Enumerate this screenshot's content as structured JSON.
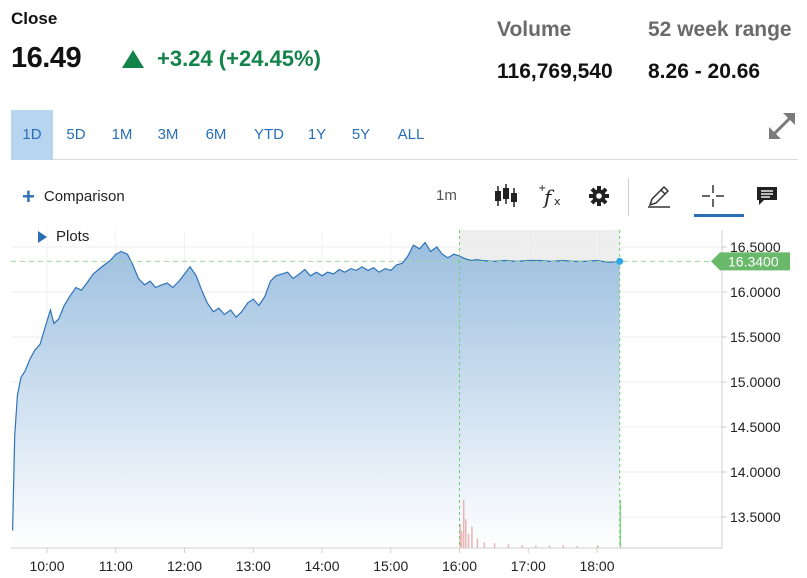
{
  "quote": {
    "close_label": "Close",
    "price": "16.49",
    "change": "+3.24 (+24.45%)",
    "change_direction": "up",
    "volume_label": "Volume",
    "volume_value": "116,769,540",
    "range_label": "52 week range",
    "range_value": "8.26 - 20.66",
    "up_color": "#13834a"
  },
  "range_tabs": [
    {
      "label": "1D",
      "active": true
    },
    {
      "label": "5D",
      "active": false
    },
    {
      "label": "1M",
      "active": false
    },
    {
      "label": "3M",
      "active": false
    },
    {
      "label": "6M",
      "active": false
    },
    {
      "label": "YTD",
      "active": false
    },
    {
      "label": "1Y",
      "active": false
    },
    {
      "label": "5Y",
      "active": false
    },
    {
      "label": "ALL",
      "active": false
    }
  ],
  "toolbar": {
    "comparison_label": "Comparison",
    "interval_label": "1m",
    "icons": [
      "candlestick-icon",
      "function-icon",
      "gear-icon",
      "pencil-icon",
      "crosshair-icon",
      "comment-icon"
    ],
    "accent_color": "#2a6fb5"
  },
  "plots_label": "Plots",
  "chart_data": {
    "type": "area",
    "x_tick_labels": [
      "10:00",
      "11:00",
      "12:00",
      "13:00",
      "14:00",
      "15:00",
      "16:00",
      "17:00",
      "18:00"
    ],
    "x_tick_hours": [
      10,
      11,
      12,
      13,
      14,
      15,
      16,
      17,
      18
    ],
    "y_tick_labels": [
      "16.5000",
      "16.0000",
      "15.5000",
      "15.0000",
      "14.5000",
      "14.0000",
      "13.5000"
    ],
    "y_tick_values": [
      16.5,
      16.0,
      15.5,
      15.0,
      14.5,
      14.0,
      13.5
    ],
    "ylim": [
      13.2,
      16.6
    ],
    "xlim": [
      9.5,
      19.0
    ],
    "last_price_label": "16.3400",
    "last_price": 16.34,
    "after_hours_start": 16.0,
    "series": [
      {
        "points": [
          [
            9.5,
            13.35
          ],
          [
            9.53,
            14.4
          ],
          [
            9.57,
            14.85
          ],
          [
            9.62,
            15.05
          ],
          [
            9.68,
            15.12
          ],
          [
            9.75,
            15.25
          ],
          [
            9.82,
            15.35
          ],
          [
            9.9,
            15.42
          ],
          [
            9.97,
            15.6
          ],
          [
            10.05,
            15.8
          ],
          [
            10.1,
            15.65
          ],
          [
            10.17,
            15.7
          ],
          [
            10.25,
            15.85
          ],
          [
            10.33,
            15.95
          ],
          [
            10.42,
            16.05
          ],
          [
            10.5,
            16.02
          ],
          [
            10.58,
            16.1
          ],
          [
            10.67,
            16.2
          ],
          [
            10.75,
            16.25
          ],
          [
            10.83,
            16.3
          ],
          [
            10.92,
            16.35
          ],
          [
            11.0,
            16.42
          ],
          [
            11.08,
            16.45
          ],
          [
            11.17,
            16.42
          ],
          [
            11.25,
            16.3
          ],
          [
            11.33,
            16.15
          ],
          [
            11.42,
            16.08
          ],
          [
            11.5,
            16.12
          ],
          [
            11.58,
            16.05
          ],
          [
            11.67,
            16.08
          ],
          [
            11.75,
            16.1
          ],
          [
            11.83,
            16.05
          ],
          [
            11.92,
            16.12
          ],
          [
            12.0,
            16.2
          ],
          [
            12.08,
            16.28
          ],
          [
            12.17,
            16.18
          ],
          [
            12.25,
            16.02
          ],
          [
            12.33,
            15.88
          ],
          [
            12.42,
            15.78
          ],
          [
            12.5,
            15.82
          ],
          [
            12.58,
            15.75
          ],
          [
            12.67,
            15.8
          ],
          [
            12.75,
            15.72
          ],
          [
            12.83,
            15.78
          ],
          [
            12.92,
            15.88
          ],
          [
            13.0,
            15.92
          ],
          [
            13.08,
            15.85
          ],
          [
            13.17,
            15.95
          ],
          [
            13.25,
            16.12
          ],
          [
            13.33,
            16.18
          ],
          [
            13.42,
            16.2
          ],
          [
            13.5,
            16.22
          ],
          [
            13.58,
            16.15
          ],
          [
            13.67,
            16.2
          ],
          [
            13.75,
            16.25
          ],
          [
            13.83,
            16.18
          ],
          [
            13.92,
            16.22
          ],
          [
            14.0,
            16.18
          ],
          [
            14.08,
            16.22
          ],
          [
            14.17,
            16.2
          ],
          [
            14.25,
            16.25
          ],
          [
            14.33,
            16.22
          ],
          [
            14.42,
            16.26
          ],
          [
            14.5,
            16.24
          ],
          [
            14.58,
            16.28
          ],
          [
            14.67,
            16.24
          ],
          [
            14.75,
            16.27
          ],
          [
            14.83,
            16.22
          ],
          [
            14.92,
            16.26
          ],
          [
            15.0,
            16.24
          ],
          [
            15.08,
            16.3
          ],
          [
            15.17,
            16.32
          ],
          [
            15.25,
            16.4
          ],
          [
            15.33,
            16.52
          ],
          [
            15.42,
            16.48
          ],
          [
            15.5,
            16.55
          ],
          [
            15.58,
            16.45
          ],
          [
            15.67,
            16.5
          ],
          [
            15.75,
            16.42
          ],
          [
            15.83,
            16.38
          ],
          [
            15.92,
            16.42
          ],
          [
            16.0,
            16.4
          ],
          [
            16.08,
            16.37
          ],
          [
            16.17,
            16.35
          ],
          [
            16.25,
            16.36
          ],
          [
            16.33,
            16.35
          ],
          [
            16.5,
            16.34
          ],
          [
            16.67,
            16.35
          ],
          [
            16.83,
            16.34
          ],
          [
            17.0,
            16.35
          ],
          [
            17.17,
            16.35
          ],
          [
            17.33,
            16.34
          ],
          [
            17.5,
            16.35
          ],
          [
            17.67,
            16.34
          ],
          [
            17.83,
            16.34
          ],
          [
            18.0,
            16.35
          ],
          [
            18.17,
            16.33
          ],
          [
            18.33,
            16.34
          ]
        ]
      }
    ],
    "volume_bars": [
      [
        16.0,
        0.5
      ],
      [
        16.02,
        0.35
      ],
      [
        16.05,
        1.0
      ],
      [
        16.08,
        0.6
      ],
      [
        16.12,
        0.3
      ],
      [
        16.17,
        0.45
      ],
      [
        16.25,
        0.2
      ],
      [
        16.35,
        0.12
      ],
      [
        16.5,
        0.1
      ],
      [
        16.7,
        0.08
      ],
      [
        16.9,
        0.06
      ],
      [
        17.1,
        0.05
      ],
      [
        17.3,
        0.05
      ],
      [
        17.5,
        0.06
      ],
      [
        17.7,
        0.04
      ],
      [
        18.0,
        0.05
      ],
      [
        18.33,
        1.0
      ]
    ],
    "line_color": "#2f74b8",
    "fill_top_color": "#9cbfe0",
    "fill_bottom_color": "#ffffff",
    "last_price_color": "#6ab86a",
    "end_dot_color": "#2fa8e8",
    "grid": true
  }
}
